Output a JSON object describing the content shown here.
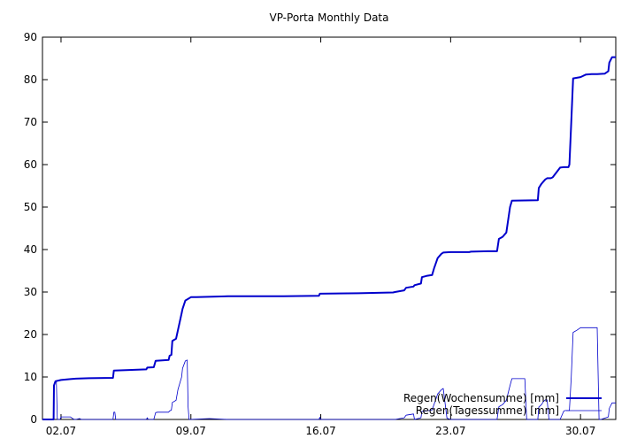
{
  "chart_data": {
    "type": "line",
    "title": "VP-Porta Monthly Data",
    "xlabel": "",
    "ylabel": "",
    "xlim": [
      1.0,
      31.9
    ],
    "ylim": [
      0,
      90
    ],
    "x_ticks": [
      {
        "value": 2,
        "label": "02.07"
      },
      {
        "value": 9,
        "label": "09.07"
      },
      {
        "value": 16,
        "label": "16.07"
      },
      {
        "value": 23,
        "label": "23.07"
      },
      {
        "value": 30,
        "label": "30.07"
      }
    ],
    "y_ticks": [
      0,
      10,
      20,
      30,
      40,
      50,
      60,
      70,
      80,
      90
    ],
    "legend_position": "bottom-right",
    "grid": false,
    "series": [
      {
        "name": "Regen(Wochensumme) [mm]",
        "color": "#0000cc",
        "line": "thick",
        "x": [
          1.0,
          1.6,
          1.62,
          1.7,
          2.0,
          2.5,
          2.8,
          3.5,
          4.8,
          4.85,
          5.5,
          6.6,
          6.65,
          7.0,
          7.1,
          7.8,
          7.85,
          7.95,
          8.0,
          8.2,
          8.3,
          8.5,
          8.55,
          8.7,
          9.0,
          9.3,
          11.0,
          14.0,
          15.9,
          15.95,
          18.0,
          19.9,
          20.0,
          20.5,
          20.6,
          21.0,
          21.05,
          21.4,
          21.45,
          21.7,
          22.0,
          22.1,
          22.3,
          22.5,
          22.6,
          23.0,
          24.0,
          24.1,
          25.0,
          25.5,
          25.6,
          25.8,
          26.0,
          26.2,
          26.3,
          27.7,
          27.75,
          27.9,
          28.0,
          28.1,
          28.2,
          28.3,
          28.4,
          28.5,
          28.9,
          29.1,
          29.3,
          29.35,
          29.4,
          29.5,
          29.6,
          30.0,
          30.3,
          30.6,
          30.9,
          31.3,
          31.5,
          31.55,
          31.7,
          31.75,
          31.9
        ],
        "y": [
          0,
          0,
          8,
          9,
          9.3,
          9.5,
          9.6,
          9.7,
          9.8,
          11.5,
          11.6,
          11.8,
          12.2,
          12.3,
          13.8,
          14.0,
          15.0,
          15.2,
          18.5,
          19.0,
          21.0,
          25.0,
          26.0,
          28.0,
          28.8,
          28.8,
          29.0,
          29.0,
          29.1,
          29.6,
          29.7,
          29.9,
          30.0,
          30.4,
          31.0,
          31.3,
          31.6,
          32.0,
          33.5,
          33.8,
          34.0,
          35.5,
          38.0,
          39.0,
          39.3,
          39.4,
          39.4,
          39.5,
          39.6,
          39.6,
          42.5,
          43.0,
          44.0,
          50.0,
          51.5,
          51.6,
          54.5,
          55.5,
          56.0,
          56.5,
          56.8,
          56.8,
          56.8,
          57.0,
          59.3,
          59.4,
          59.4,
          59.4,
          60.0,
          70.0,
          80.3,
          80.6,
          81.2,
          81.3,
          81.3,
          81.4,
          82.0,
          84.0,
          85.3,
          85.3,
          85.3
        ]
      },
      {
        "name": "Regen(Tagessumme) [mm]",
        "color": "#0000cc",
        "line": "thin",
        "x": [
          1.0,
          1.6,
          1.62,
          1.7,
          1.75,
          1.8,
          1.95,
          2.0,
          2.5,
          2.6,
          2.7,
          2.8,
          3.0,
          3.1,
          3.5,
          4.8,
          4.85,
          4.9,
          4.95,
          5.5,
          6.6,
          6.65,
          6.7,
          7.0,
          7.1,
          7.2,
          7.8,
          7.85,
          7.95,
          8.0,
          8.2,
          8.3,
          8.5,
          8.55,
          8.7,
          8.8,
          8.85,
          8.9,
          10.0,
          11.0,
          14.0,
          15.9,
          15.95,
          16.0,
          20.0,
          20.5,
          20.6,
          21.0,
          21.05,
          21.4,
          21.45,
          21.7,
          22.0,
          22.1,
          22.3,
          22.5,
          22.6,
          22.8,
          23.0,
          25.5,
          25.6,
          25.8,
          26.0,
          26.2,
          26.3,
          26.5,
          26.6,
          27.0,
          27.1,
          27.7,
          27.75,
          27.9,
          28.0,
          28.1,
          28.2,
          28.3,
          28.9,
          29.1,
          29.2,
          29.4,
          29.5,
          29.6,
          29.8,
          30.0,
          30.3,
          30.6,
          30.9,
          31.0,
          31.1,
          31.5,
          31.55,
          31.7,
          31.9
        ],
        "y": [
          0,
          0,
          8,
          9,
          9.0,
          0,
          0,
          0.6,
          0.6,
          0.3,
          0,
          0,
          0.2,
          0,
          0,
          0,
          1.7,
          1.7,
          0,
          0,
          0,
          0.4,
          0,
          0,
          1.6,
          1.7,
          1.7,
          2.0,
          2.2,
          4.0,
          4.5,
          7.0,
          10.0,
          12.0,
          13.8,
          14.0,
          3.0,
          0,
          0.2,
          0,
          0,
          0,
          0.5,
          0,
          0,
          0.4,
          1.0,
          1.3,
          0,
          0.4,
          1.9,
          2.0,
          2.2,
          3.5,
          6.0,
          7.0,
          7.3,
          0.3,
          0,
          0,
          3.0,
          3.5,
          4.5,
          8.0,
          9.6,
          9.6,
          9.6,
          9.6,
          0,
          0,
          2.9,
          3.5,
          4.2,
          4.6,
          4.6,
          0,
          0,
          2.0,
          2.1,
          2.1,
          10.0,
          20.5,
          21.0,
          21.6,
          21.6,
          21.6,
          21.6,
          0,
          0,
          0.6,
          2.6,
          3.9,
          3.9
        ]
      }
    ]
  }
}
